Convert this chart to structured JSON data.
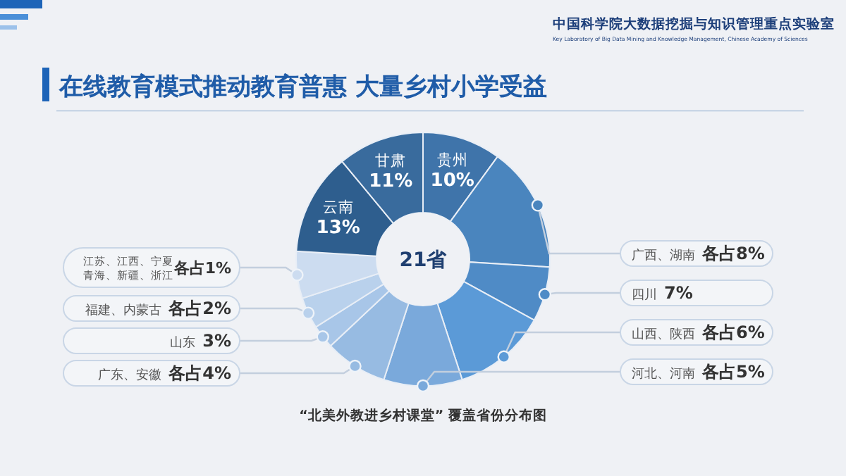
{
  "chart_data": {
    "type": "donut",
    "title": "在线教育模式推动教育普惠 大量乡村小学受益",
    "categories": [
      "贵州",
      "广西、湖南",
      "四川",
      "山西、陕西",
      "河北、河南",
      "广东、安徽",
      "山东",
      "福建、内蒙古",
      "江苏、江西、宁夏青海、新疆、浙江",
      "云南",
      "甘肃"
    ],
    "values": [
      10,
      16,
      7,
      12,
      10,
      8,
      3,
      4,
      6,
      13,
      11
    ],
    "value_labels": [
      "10%",
      "各占8%",
      "7%",
      "各占6%",
      "各占5%",
      "各占4%",
      "3%",
      "各占2%",
      "各占1%",
      "13%",
      "11%"
    ],
    "colors": [
      "#3f74aa",
      "#4a85be",
      "#4f8bc6",
      "#5b9ad7",
      "#7aa9db",
      "#97bbe2",
      "#a8c6e8",
      "#b9d1ec",
      "#ccdcf0",
      "#2e5e8e",
      "#396b9d"
    ],
    "annotations": [
      "21省",
      "“北美外教进乡村课堂” 覆盖省份分布图",
      "中国科学院大数据挖掘与知识管理重点实验室",
      "Key Laboratory of Big Data Mining and Knowledge Management, Chinese Academy of Sciences"
    ]
  }
}
